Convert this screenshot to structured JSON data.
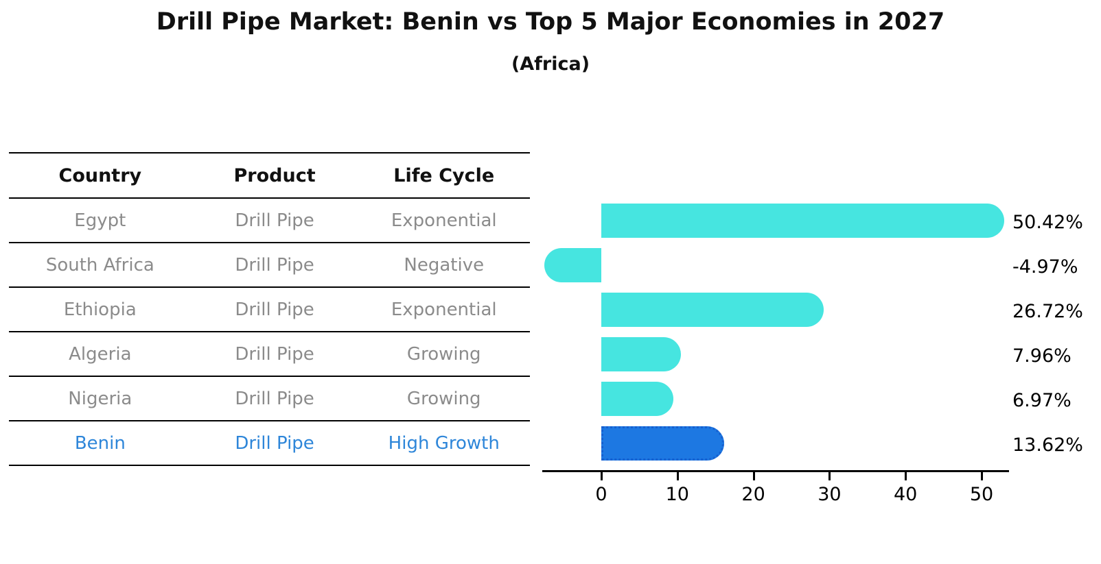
{
  "title": "Drill Pipe Market: Benin vs Top 5 Major Economies in 2027",
  "subtitle": "(Africa)",
  "table": {
    "headers": [
      "Country",
      "Product",
      "Life Cycle"
    ],
    "rows": [
      {
        "country": "Egypt",
        "product": "Drill Pipe",
        "life_cycle": "Exponential",
        "highlight": false
      },
      {
        "country": "South Africa",
        "product": "Drill Pipe",
        "life_cycle": "Negative",
        "highlight": false
      },
      {
        "country": "Ethiopia",
        "product": "Drill Pipe",
        "life_cycle": "Exponential",
        "highlight": false
      },
      {
        "country": "Algeria",
        "product": "Drill Pipe",
        "life_cycle": "Growing",
        "highlight": false
      },
      {
        "country": "Nigeria",
        "product": "Drill Pipe",
        "life_cycle": "Growing",
        "highlight": false
      },
      {
        "country": "Benin",
        "product": "Drill Pipe",
        "life_cycle": "High Growth",
        "highlight": true
      }
    ]
  },
  "chart_data": {
    "type": "bar",
    "orientation": "horizontal",
    "title": "Drill Pipe Market: Benin vs Top 5 Major Economies in 2027 (Africa)",
    "categories": [
      "Egypt",
      "South Africa",
      "Ethiopia",
      "Algeria",
      "Nigeria",
      "Benin"
    ],
    "values": [
      50.42,
      -4.97,
      26.72,
      7.96,
      6.97,
      13.62
    ],
    "value_labels": [
      "50.42%",
      "-4.97%",
      "26.72%",
      "7.96%",
      "6.97%",
      "13.62%"
    ],
    "highlight_index": 5,
    "xticks": [
      0,
      10,
      20,
      30,
      40,
      50
    ],
    "xlim": [
      -8,
      54
    ],
    "grid": false,
    "legend": false
  },
  "colors": {
    "bar_default": "#46e5e0",
    "bar_highlight": "#1d78e2",
    "bar_highlight_border": "#1660d0",
    "highlight_text": "#2e86d9",
    "table_text": "#8b8b8b",
    "header_text": "#111111",
    "axis": "#000000"
  }
}
